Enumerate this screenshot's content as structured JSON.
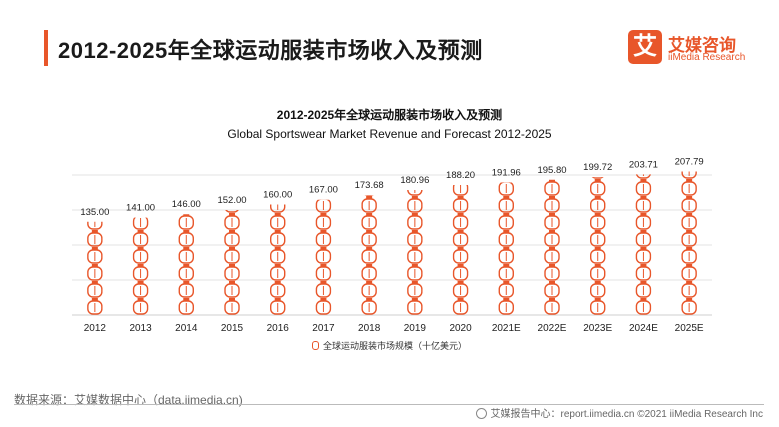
{
  "header": {
    "title": "2012-2025年全球运动服装市场收入及预测",
    "brand_badge": "艾",
    "brand_cn": "艾媒咨询",
    "brand_en": "iiMedia Research"
  },
  "colors": {
    "accent": "#e8562a",
    "grid": "#e3e3e3"
  },
  "chart_data": {
    "type": "bar",
    "title": "2012-2025年全球运动服装市场收入及预测",
    "subtitle": "Global Sportswear Market Revenue and Forecast 2012-2025",
    "categories": [
      "2012",
      "2013",
      "2014",
      "2015",
      "2016",
      "2017",
      "2018",
      "2019",
      "2020",
      "2021E",
      "2022E",
      "2023E",
      "2024E",
      "2025E"
    ],
    "value_labels": [
      "135.00",
      "141.00",
      "146.00",
      "152.00",
      "160.00",
      "167.00",
      "173.68",
      "180.96",
      "188.20",
      "191.96",
      "195.80",
      "199.72",
      "203.71",
      "207.79"
    ],
    "series": [
      {
        "name": "全球运动服装市场规模（十亿美元）",
        "values": [
          135.0,
          141.0,
          146.0,
          152.0,
          160.0,
          167.0,
          173.68,
          180.96,
          188.2,
          191.96,
          195.8,
          199.72,
          203.71,
          207.79
        ]
      }
    ],
    "ylim": [
      0,
      210
    ],
    "grid": true,
    "legend_position": "bottom"
  },
  "footer": {
    "source": "数据来源：艾媒数据中心（data.iimedia.cn)",
    "right": "艾媒报告中心：report.iimedia.cn   ©2021  iiMedia Research  Inc"
  }
}
